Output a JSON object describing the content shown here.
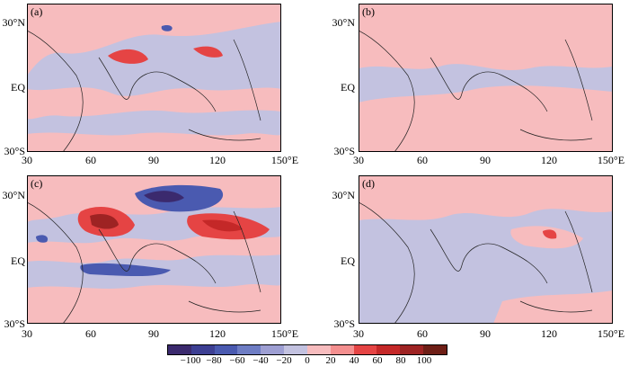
{
  "panels": [
    {
      "id": "a",
      "label": "(a)"
    },
    {
      "id": "b",
      "label": "(b)"
    },
    {
      "id": "c",
      "label": "(c)"
    },
    {
      "id": "d",
      "label": "(d)"
    }
  ],
  "lat_labels": [
    "30°N",
    "EQ",
    "30°S"
  ],
  "lon_labels": [
    "30",
    "60",
    "90",
    "120",
    "150°E"
  ],
  "colorbar": {
    "colors": [
      "#3b2a6e",
      "#3d3f93",
      "#4a5ab0",
      "#6e7dc4",
      "#9e9fd3",
      "#c3c2e0",
      "#f7bcbe",
      "#f48f8f",
      "#e54444",
      "#c42828",
      "#9e2323",
      "#6e1e16"
    ],
    "labels": [
      "−100",
      "−80",
      "−60",
      "−40",
      "−20",
      "0",
      "20",
      "40",
      "60",
      "80",
      "100"
    ]
  },
  "colors": {
    "negative_light": "#c3c2e0",
    "positive_light": "#f7bcbe"
  }
}
